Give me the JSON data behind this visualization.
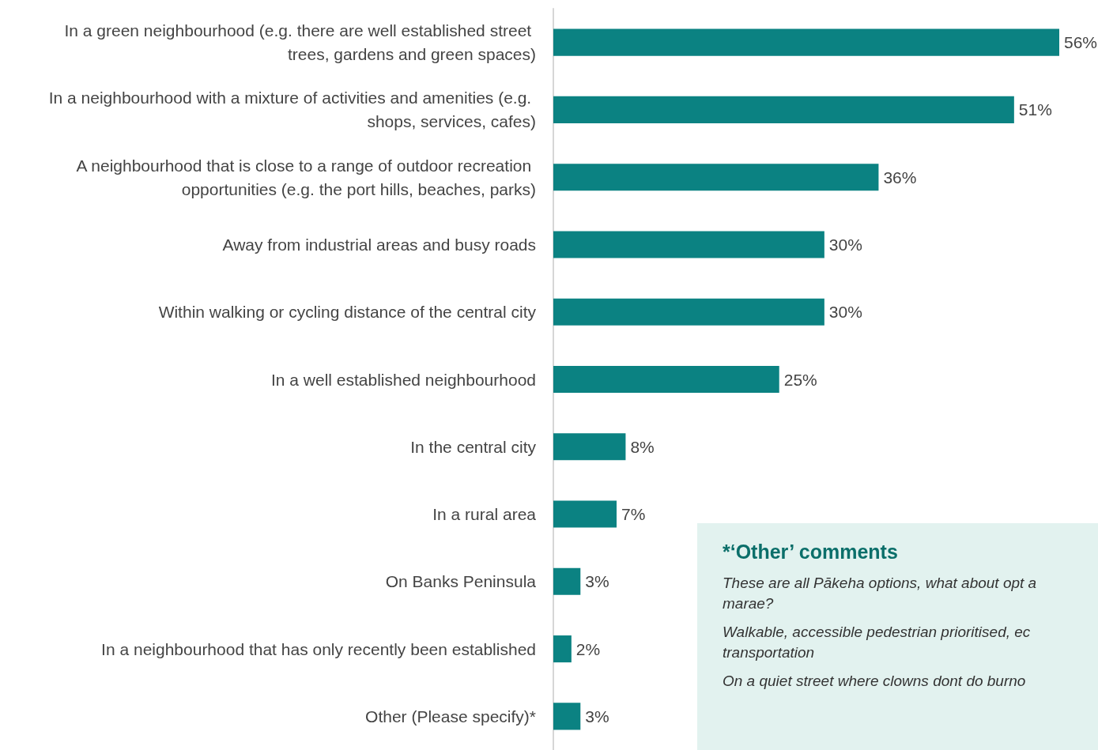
{
  "chart_data": {
    "type": "bar",
    "orientation": "horizontal",
    "categories": [
      "In a green neighbourhood (e.g. there are well established street trees, gardens and green spaces)",
      "In a neighbourhood with a mixture of activities and amenities (e.g. shops, services, cafes)",
      "A neighbourhood that is close to a range of outdoor recreation opportunities (e.g. the port hills, beaches, parks)",
      "Away from industrial areas and busy roads",
      "Within walking or cycling distance of the central city",
      "In a well established neighbourhood",
      "In the central city",
      "In a rural area",
      "On Banks Peninsula",
      "In a neighbourhood that has only recently been established",
      "Other (Please specify)*"
    ],
    "values": [
      56,
      51,
      36,
      30,
      30,
      25,
      8,
      7,
      3,
      2,
      3
    ],
    "value_labels": [
      "56%",
      "51%",
      "36%",
      "30%",
      "30%",
      "25%",
      "8%",
      "7%",
      "3%",
      "2%",
      "3%"
    ],
    "color": "#0b8282",
    "annotations": [
      "*‘Other’ comments",
      "These are all Pākeha options, what about opt a marae?",
      "Walkable, accessible pedestrian prioritised, ec transportation",
      "On a quiet street where clowns dont do burno"
    ]
  }
}
